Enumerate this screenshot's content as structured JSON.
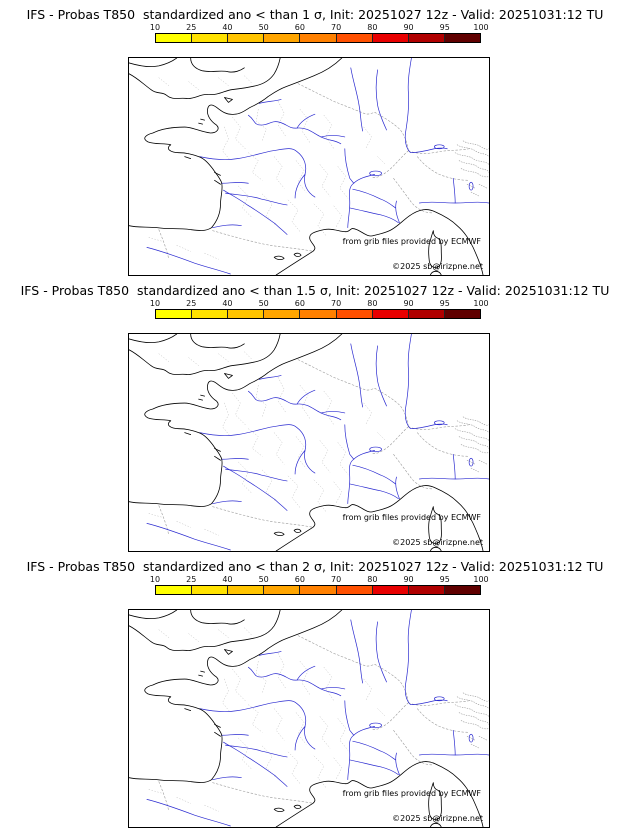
{
  "page": {
    "background": "#ffffff"
  },
  "colorbar": {
    "ticks": [
      "10",
      "25",
      "40",
      "50",
      "60",
      "70",
      "80",
      "90",
      "95",
      "100"
    ],
    "colors": [
      "#ffff00",
      "#ffe200",
      "#ffc400",
      "#ffa500",
      "#ff8000",
      "#ff5000",
      "#e80000",
      "#b00000",
      "#600000"
    ]
  },
  "map": {
    "coast_color": "#000000",
    "river_color": "#2a2ad0",
    "national_border_color": "#999999",
    "department_border_color": "#bbbbbb",
    "hatch_color": "#999999"
  },
  "panels": [
    {
      "title": "IFS - Probas T850  standardized ano < than 1 σ, Init: 20251027 12z - Valid: 20251031:12 TU",
      "credit": "from grib files provided by ECMWF",
      "copyright": "©2025 sb@irizpne.net"
    },
    {
      "title": "IFS - Probas T850  standardized ano < than 1.5 σ, Init: 20251027 12z - Valid: 20251031:12 TU",
      "credit": "from grib files provided by ECMWF",
      "copyright": "©2025 sb@irizpne.net"
    },
    {
      "title": "IFS - Probas T850  standardized ano < than 2 σ, Init: 20251027 12z - Valid: 20251031:12 TU",
      "credit": "from grib files provided by ECMWF",
      "copyright": "©2025 sb@irizpne.net"
    }
  ]
}
